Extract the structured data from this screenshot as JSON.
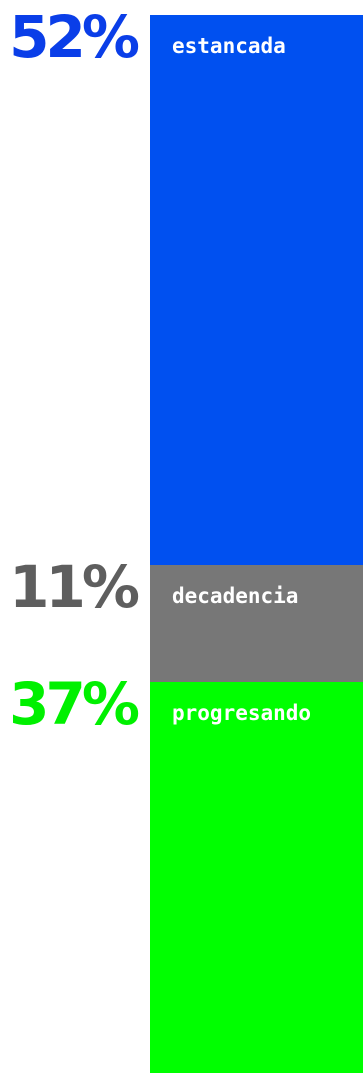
{
  "chart_data": {
    "type": "stacked-bar",
    "unit": "%",
    "segments": [
      {
        "label": "estancada",
        "value": 52,
        "value_label": "52%",
        "color": "#0050f0",
        "pct_color": "#0a3ee8"
      },
      {
        "label": "decadencia",
        "value": 11,
        "value_label": "11%",
        "color": "#777777",
        "pct_color": "#5e5e5e"
      },
      {
        "label": "progresando",
        "value": 37,
        "value_label": "37%",
        "color": "#00ff00",
        "pct_color": "#00f000"
      }
    ]
  }
}
